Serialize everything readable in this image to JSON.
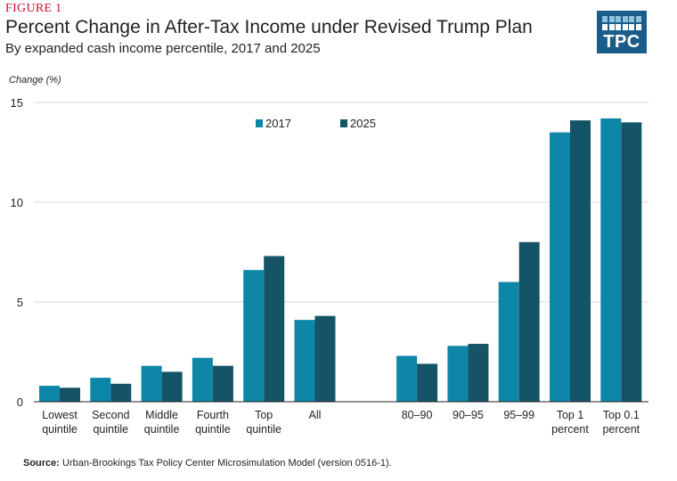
{
  "figure_label": "FIGURE 1",
  "title": "Percent Change in After-Tax Income under Revised Trump Plan",
  "subtitle": "By expanded cash income percentile, 2017 and 2025",
  "logo_text": "TPC",
  "source_label": "Source:",
  "source_text": " Urban-Brookings Tax Policy Center Microsimulation Model (version 0516-1).",
  "chart_data": {
    "type": "bar",
    "title": "Percent Change in After-Tax Income under Revised Trump Plan",
    "subtitle": "By expanded cash income percentile, 2017 and 2025",
    "ylabel": "Change (%)",
    "xlabel": "",
    "ylim": [
      0,
      15
    ],
    "yticks": [
      0,
      5,
      10,
      15
    ],
    "grid": true,
    "legend_position": "top-center",
    "categories": [
      [
        "Lowest",
        "quintile"
      ],
      [
        "Second",
        "quintile"
      ],
      [
        "Middle",
        "quintile"
      ],
      [
        "Fourth",
        "quintile"
      ],
      [
        "Top",
        "quintile"
      ],
      [
        "All"
      ],
      [
        "80–90"
      ],
      [
        "90–95"
      ],
      [
        "95–99"
      ],
      [
        "Top 1",
        "percent"
      ],
      [
        "Top 0.1",
        "percent"
      ]
    ],
    "series": [
      {
        "name": "2017",
        "color": "#0e86a8",
        "values": [
          0.8,
          1.2,
          1.8,
          2.2,
          6.6,
          4.1,
          2.3,
          2.8,
          6.0,
          13.5,
          14.2
        ]
      },
      {
        "name": "2025",
        "color": "#155466",
        "values": [
          0.7,
          0.9,
          1.5,
          1.8,
          7.3,
          4.3,
          1.9,
          2.9,
          8.0,
          14.1,
          14.0
        ]
      }
    ]
  }
}
